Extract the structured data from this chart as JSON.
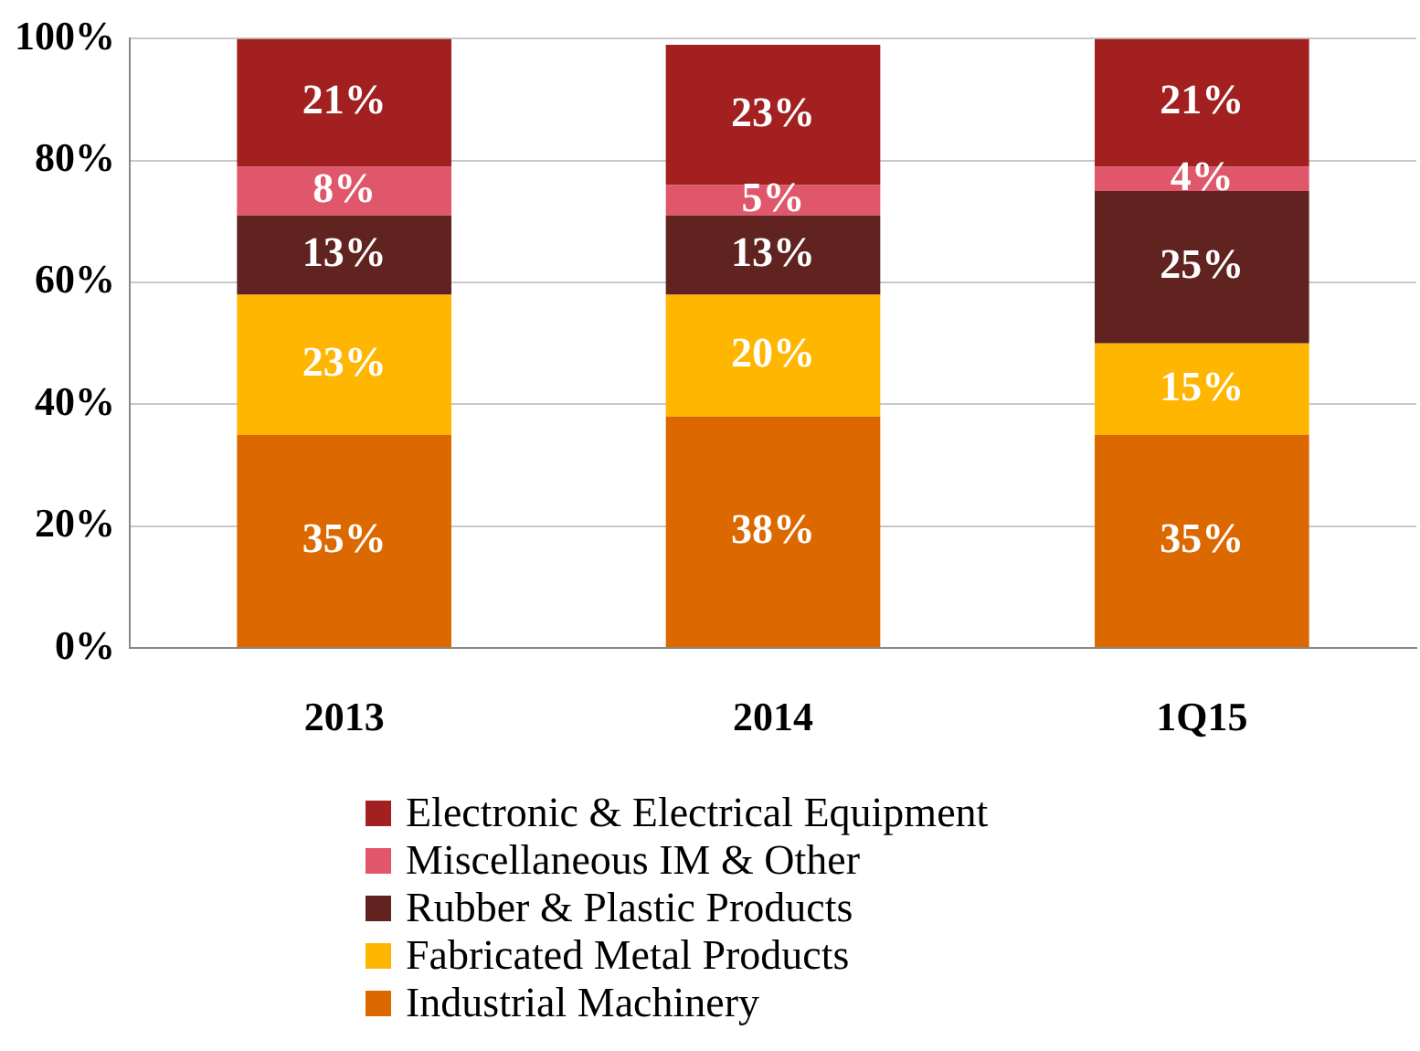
{
  "chart_data": {
    "type": "bar",
    "stacked": true,
    "categories": [
      "2013",
      "2014",
      "1Q15"
    ],
    "series": [
      {
        "name": "Industrial Machinery",
        "color": "#dc6900",
        "values": [
          35,
          38,
          35
        ],
        "value_labels": [
          "35%",
          "38%",
          "35%"
        ]
      },
      {
        "name": "Fabricated Metal Products",
        "color": "#ffb600",
        "values": [
          23,
          20,
          15
        ],
        "value_labels": [
          "23%",
          "20%",
          "15%"
        ]
      },
      {
        "name": "Rubber & Plastic Products",
        "color": "#602320",
        "values": [
          13,
          13,
          25
        ],
        "value_labels": [
          "13%",
          "13%",
          "25%"
        ]
      },
      {
        "name": "Miscellaneous IM & Other",
        "color": "#e0566b",
        "values": [
          8,
          5,
          4
        ],
        "value_labels": [
          "8%",
          "5%",
          "4%"
        ]
      },
      {
        "name": "Electronic & Electrical Equipment",
        "color": "#a32020",
        "values": [
          21,
          23,
          21
        ],
        "value_labels": [
          "21%",
          "23%",
          "21%"
        ]
      }
    ],
    "ylim": [
      0,
      100
    ],
    "yticks": [
      {
        "value": 0,
        "label": "0%"
      },
      {
        "value": 20,
        "label": "20%"
      },
      {
        "value": 40,
        "label": "40%"
      },
      {
        "value": 60,
        "label": "60%"
      },
      {
        "value": 80,
        "label": "80%"
      },
      {
        "value": 100,
        "label": "100%"
      }
    ],
    "grid": "y",
    "legend": "bottom"
  }
}
